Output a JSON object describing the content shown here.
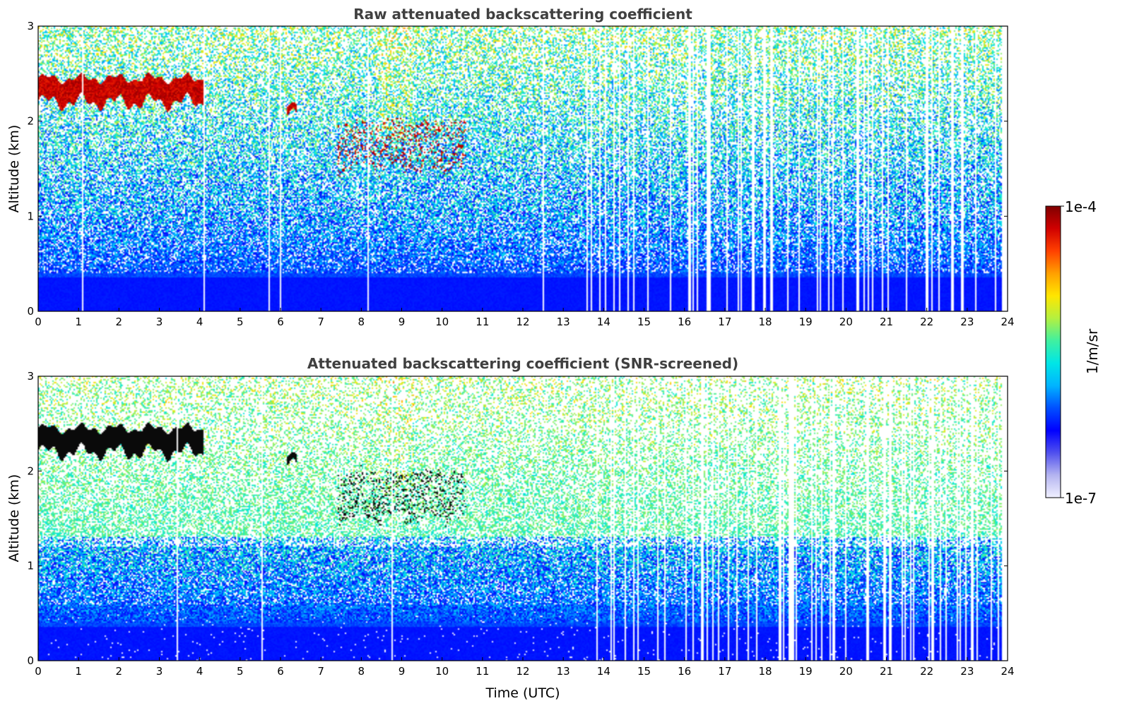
{
  "colors": {
    "colormap": [
      "#f0f0ff",
      "#b4b4f0",
      "#5050ee",
      "#0000ff",
      "#0050ff",
      "#00b4ff",
      "#00e6e6",
      "#40f0a0",
      "#b4f040",
      "#ffe600",
      "#ffa000",
      "#ff4000",
      "#d00000",
      "#800000"
    ],
    "cloud_dark": "#7a0000",
    "screened_cloud": "#000000"
  },
  "chart_data": [
    {
      "type": "heatmap",
      "title": "Raw attenuated backscattering coefficient",
      "xlabel": "",
      "ylabel": "Altitude (km)",
      "xlim": [
        0,
        24
      ],
      "ylim": [
        0,
        3
      ],
      "x_ticks": [
        "0",
        "1",
        "2",
        "3",
        "4",
        "5",
        "6",
        "7",
        "8",
        "9",
        "10",
        "11",
        "12",
        "13",
        "14",
        "15",
        "16",
        "17",
        "18",
        "19",
        "20",
        "21",
        "22",
        "23",
        "24"
      ],
      "y_ticks": [
        "0",
        "1",
        "2",
        "3"
      ],
      "screened": false,
      "cloud_layers": [
        {
          "t_start": 0.0,
          "t_end": 4.1,
          "alt_base": 2.2,
          "alt_top": 2.45
        },
        {
          "t_start": 6.15,
          "t_end": 6.4,
          "alt_base": 2.05,
          "alt_top": 2.15
        },
        {
          "t_start": 7.4,
          "t_end": 10.6,
          "alt_base": 1.5,
          "alt_top": 2.0
        }
      ]
    },
    {
      "type": "heatmap",
      "title": "Attenuated backscattering coefficient (SNR-screened)",
      "xlabel": "Time (UTC)",
      "ylabel": "Altitude (km)",
      "xlim": [
        0,
        24
      ],
      "ylim": [
        0,
        3
      ],
      "x_ticks": [
        "0",
        "1",
        "2",
        "3",
        "4",
        "5",
        "6",
        "7",
        "8",
        "9",
        "10",
        "11",
        "12",
        "13",
        "14",
        "15",
        "16",
        "17",
        "18",
        "19",
        "20",
        "21",
        "22",
        "23",
        "24"
      ],
      "y_ticks": [
        "0",
        "1",
        "2",
        "3"
      ],
      "screened": true,
      "cloud_layers": [
        {
          "t_start": 0.0,
          "t_end": 4.1,
          "alt_base": 2.2,
          "alt_top": 2.45
        },
        {
          "t_start": 6.15,
          "t_end": 6.4,
          "alt_base": 2.05,
          "alt_top": 2.15
        },
        {
          "t_start": 7.4,
          "t_end": 10.6,
          "alt_base": 1.5,
          "alt_top": 2.0
        }
      ]
    }
  ],
  "colorbar": {
    "label": "1/m/sr",
    "max_label": "1e-4",
    "min_label": "1e-7",
    "range": [
      1e-07,
      0.0001
    ],
    "scale": "log"
  }
}
